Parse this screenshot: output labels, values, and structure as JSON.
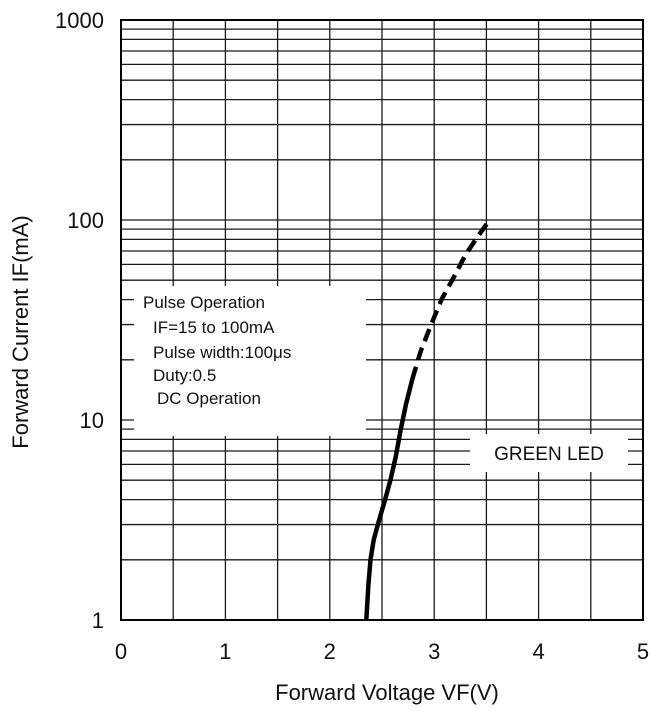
{
  "chart_data": {
    "type": "line",
    "title": "",
    "xlabel": "Forward Voltage VF(V)",
    "ylabel": "Forward Current IF(mA)",
    "xlim": [
      0,
      5
    ],
    "ylim": [
      1,
      1000
    ],
    "yscale": "log",
    "grid": true,
    "x_ticks": [
      "0",
      "1",
      "2",
      "3",
      "4",
      "5"
    ],
    "y_ticks": [
      "1",
      "10",
      "100",
      "1000"
    ],
    "series": [
      {
        "name": "GREEN LED",
        "color": "#000000",
        "segments": [
          {
            "style": "solid",
            "points": [
              [
                2.35,
                1
              ],
              [
                2.37,
                1.5
              ],
              [
                2.39,
                2
              ],
              [
                2.42,
                2.5
              ],
              [
                2.46,
                3
              ],
              [
                2.53,
                4
              ],
              [
                2.58,
                5
              ],
              [
                2.63,
                6.5
              ],
              [
                2.68,
                9
              ],
              [
                2.73,
                12
              ],
              [
                2.79,
                16
              ]
            ]
          },
          {
            "style": "dashed",
            "points": [
              [
                2.79,
                16
              ],
              [
                2.87,
                22
              ],
              [
                2.97,
                30
              ],
              [
                3.07,
                40
              ],
              [
                3.19,
                52
              ],
              [
                3.3,
                67
              ],
              [
                3.42,
                83
              ],
              [
                3.53,
                100
              ]
            ]
          }
        ]
      }
    ],
    "annotation_box": {
      "lines": [
        "Pulse Operation",
        "IF=15 to 100mA",
        "Pulse width:100μs",
        "Duty:0.5",
        "DC Operation"
      ]
    },
    "legend_label": "GREEN LED",
    "legend_position": "lower-right"
  }
}
